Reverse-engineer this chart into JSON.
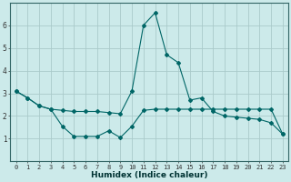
{
  "xlabel": "Humidex (Indice chaleur)",
  "background_color": "#cceaea",
  "grid_color": "#aacaca",
  "line_color": "#006666",
  "series1_x": [
    0,
    1,
    2,
    3,
    4,
    5,
    6,
    7,
    8,
    9,
    10,
    11,
    12,
    13,
    14,
    15,
    16,
    17,
    18,
    19,
    20,
    21,
    22,
    23
  ],
  "series1_y": [
    3.1,
    2.8,
    2.45,
    2.3,
    2.25,
    2.2,
    2.2,
    2.2,
    2.15,
    2.1,
    3.1,
    6.0,
    6.55,
    4.7,
    4.35,
    2.7,
    2.8,
    2.2,
    2.0,
    1.95,
    1.9,
    1.85,
    1.7,
    1.2
  ],
  "series2_x": [
    0,
    1,
    2,
    3,
    4,
    5,
    6,
    7,
    8,
    9,
    10,
    11,
    12,
    13,
    14,
    15,
    16,
    17,
    18,
    19,
    20,
    21,
    22,
    23
  ],
  "series2_y": [
    3.1,
    2.8,
    2.45,
    2.3,
    1.55,
    1.1,
    1.1,
    1.1,
    1.35,
    1.05,
    1.55,
    2.25,
    2.3,
    2.3,
    2.3,
    2.3,
    2.3,
    2.3,
    2.3,
    2.3,
    2.3,
    2.3,
    2.3,
    1.2
  ],
  "ylim": [
    0,
    7
  ],
  "xlim": [
    -0.5,
    23.5
  ],
  "yticks": [
    1,
    2,
    3,
    4,
    5,
    6
  ],
  "xticks": [
    0,
    1,
    2,
    3,
    4,
    5,
    6,
    7,
    8,
    9,
    10,
    11,
    12,
    13,
    14,
    15,
    16,
    17,
    18,
    19,
    20,
    21,
    22,
    23
  ],
  "tick_fontsize": 5.0,
  "xlabel_fontsize": 6.5
}
